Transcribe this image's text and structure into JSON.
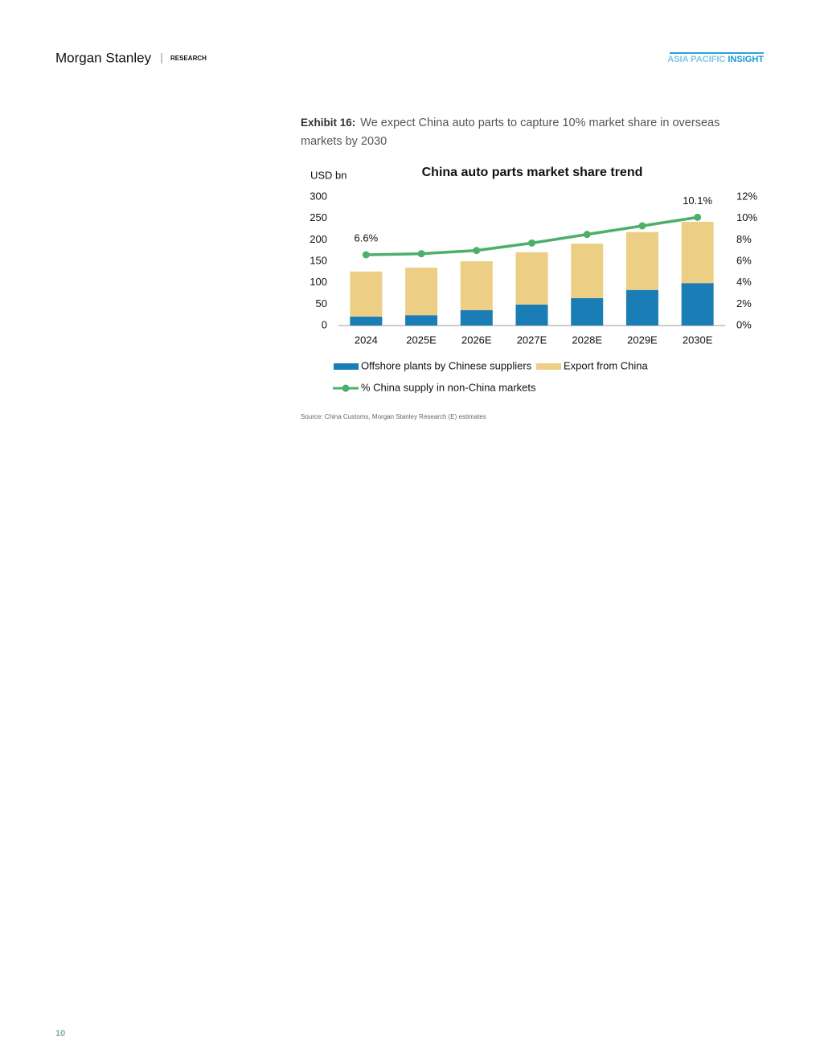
{
  "header": {
    "brand": "Morgan Stanley",
    "section": "RESEARCH",
    "tag_region": "ASIA PACIFIC",
    "tag_label": "INSIGHT"
  },
  "exhibit": {
    "label": "Exhibit 16:",
    "caption": "We expect China auto parts to capture 10% market share in overseas markets by 2030"
  },
  "chart_data": {
    "type": "bar",
    "stacked": true,
    "title": "China auto parts market share trend",
    "ylabel": "USD bn",
    "categories": [
      "2024",
      "2025E",
      "2026E",
      "2027E",
      "2028E",
      "2029E",
      "2030E"
    ],
    "series": [
      {
        "name": "Offshore plants by Chinese suppliers",
        "color": "#1a7db5",
        "values": [
          21,
          24,
          36,
          49,
          64,
          83,
          99
        ]
      },
      {
        "name": "Export from China",
        "color": "#ecce85",
        "values": [
          105,
          111,
          114,
          122,
          127,
          135,
          143
        ]
      },
      {
        "name": "% China supply in non-China markets",
        "type": "line",
        "axis": "y2",
        "color": "#4caf6a",
        "values": [
          6.6,
          6.7,
          7.0,
          7.7,
          8.5,
          9.3,
          10.1
        ],
        "value_labels": [
          "6.6%",
          null,
          null,
          null,
          null,
          null,
          "10.1%"
        ]
      }
    ],
    "ylim": [
      0,
      300
    ],
    "yticks": [
      0,
      50,
      100,
      150,
      200,
      250,
      300
    ],
    "y2lim": [
      0,
      12
    ],
    "y2ticks": [
      {
        "value": 0,
        "label": "0%"
      },
      {
        "value": 2,
        "label": "2%"
      },
      {
        "value": 4,
        "label": "4%"
      },
      {
        "value": 6,
        "label": "6%"
      },
      {
        "value": 8,
        "label": "8%"
      },
      {
        "value": 10,
        "label": "10%"
      },
      {
        "value": 12,
        "label": "12%"
      }
    ],
    "grid": false,
    "legend": "bottom"
  },
  "source": "Source: China Customs, Morgan Stanley Research (E) estimates",
  "page_number": "10"
}
